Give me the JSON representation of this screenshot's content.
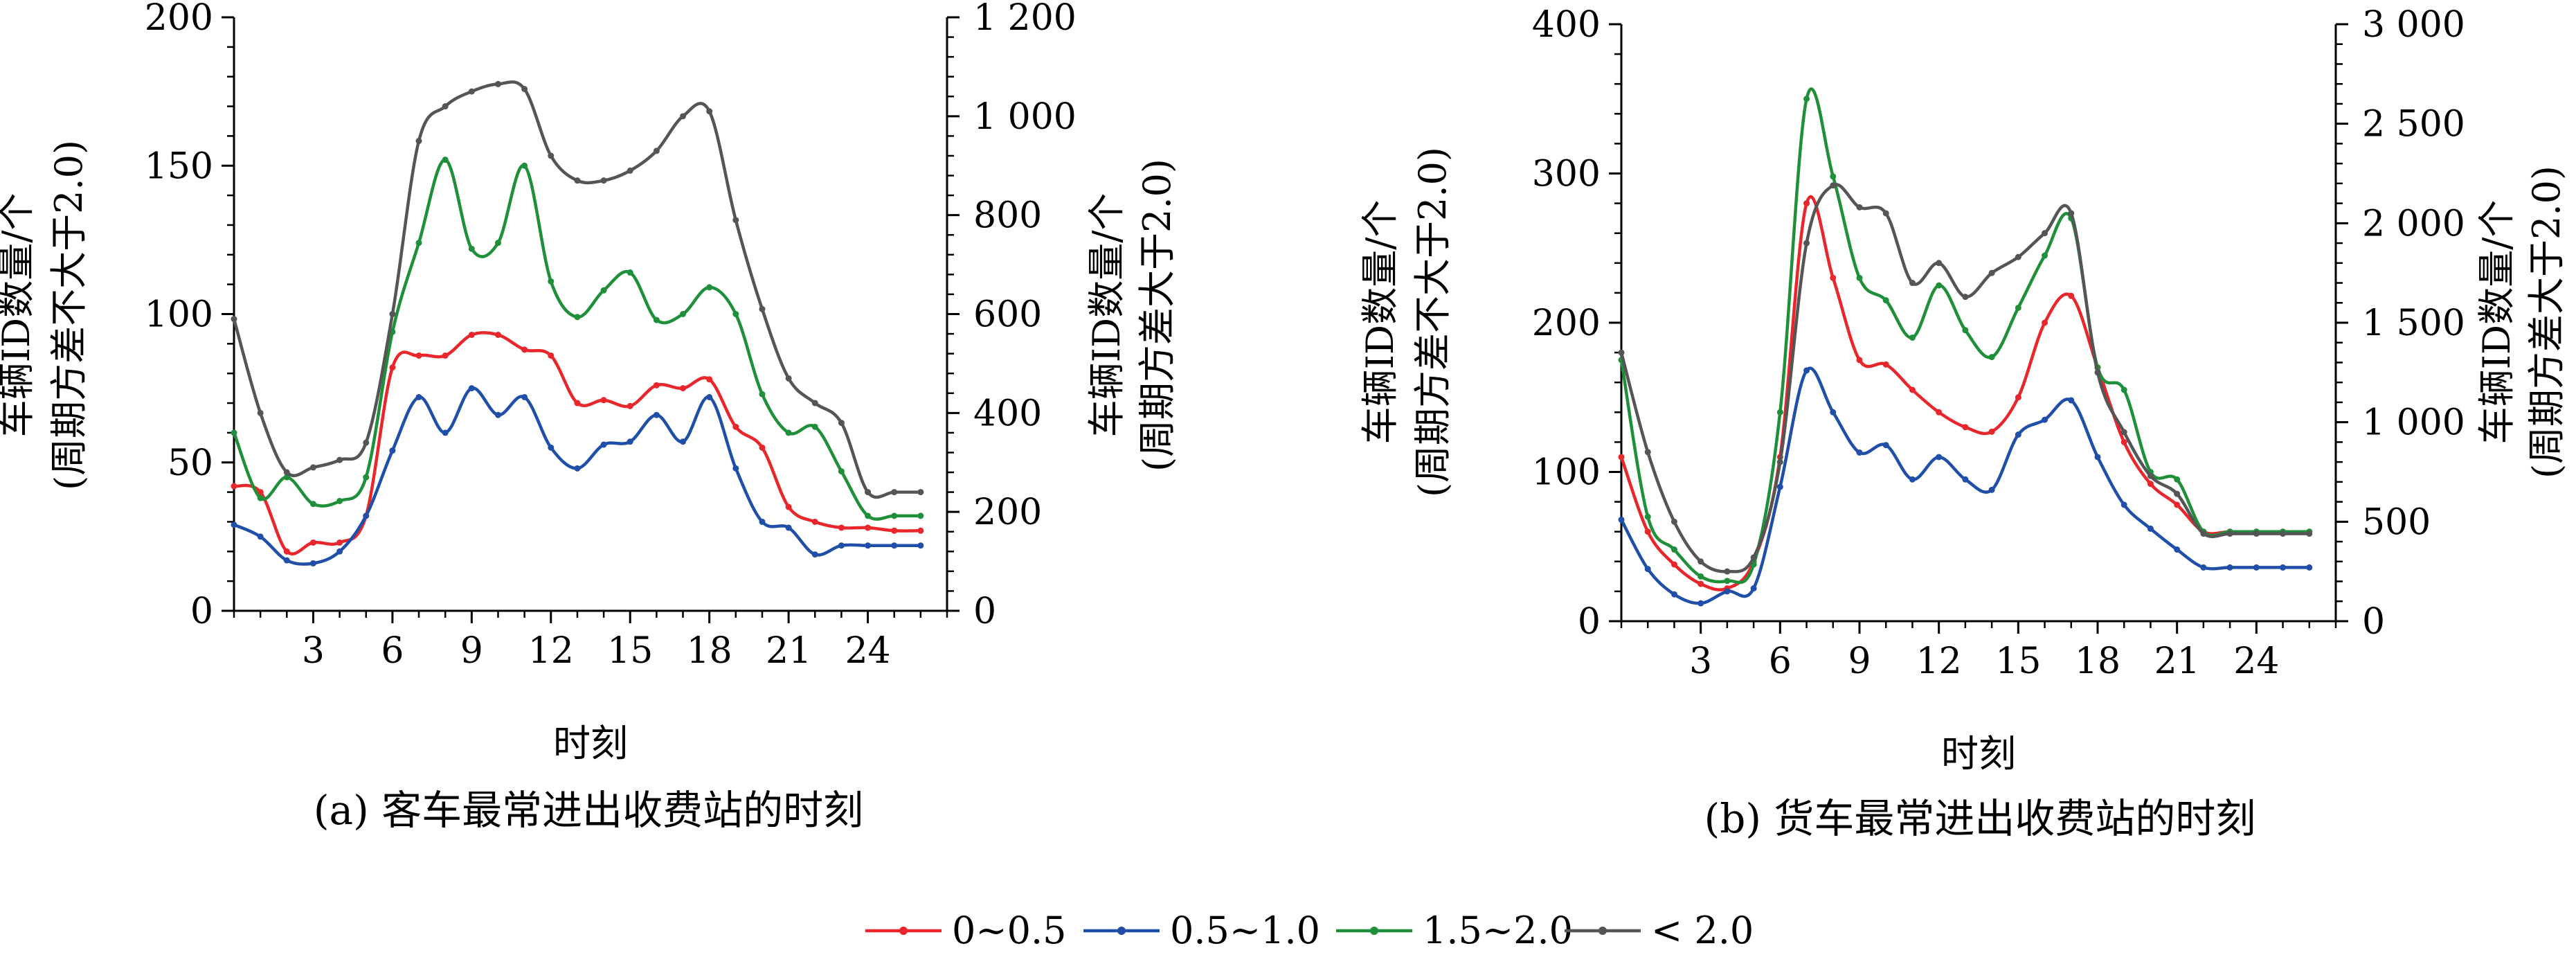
{
  "legend": [
    {
      "label": "0~0.5",
      "color": "#e8262b"
    },
    {
      "label": "0.5~1.0",
      "color": "#1f4fa8"
    },
    {
      "label": "1.5~2.0",
      "color": "#1f8f3a"
    },
    {
      "label": "< 2.0",
      "color": "#555555"
    }
  ],
  "chart_data": [
    {
      "type": "line",
      "caption": "(a) 客车最常进出收费站的时刻",
      "xlabel": "时刻",
      "ylabel_left_lines": [
        "车辆ID数量/个",
        "(周期方差不大于2.0)"
      ],
      "ylabel_right_lines": [
        "车辆ID数量/个",
        "(周期方差大于2.0)"
      ],
      "xlim": [
        0,
        27
      ],
      "xticks": [
        3,
        6,
        9,
        12,
        15,
        18,
        21,
        24
      ],
      "xtick_labels": [
        "3",
        "6",
        "9",
        "12",
        "15",
        "18",
        "21",
        "24"
      ],
      "ylim_left": [
        0,
        200
      ],
      "yticks_left": [
        0,
        50,
        100,
        150,
        200
      ],
      "ytick_labels_left": [
        "0",
        "50",
        "100",
        "150",
        "200"
      ],
      "ylim_right": [
        0,
        1200
      ],
      "yticks_right": [
        0,
        200,
        400,
        600,
        800,
        1000,
        1200
      ],
      "ytick_labels_right": [
        "0",
        "200",
        "400",
        "600",
        "800",
        "1 000",
        "1 200"
      ],
      "x": [
        0,
        1,
        2,
        3,
        4,
        5,
        6,
        7,
        8,
        9,
        10,
        11,
        12,
        13,
        14,
        15,
        16,
        17,
        18,
        19,
        20,
        21,
        22,
        23,
        24,
        25,
        26
      ],
      "series": [
        {
          "name": "0~0.5",
          "axis": "left",
          "color": "#e8262b",
          "values": [
            42,
            40,
            20,
            23,
            23,
            32,
            82,
            86,
            86,
            93,
            93,
            88,
            86,
            70,
            71,
            69,
            76,
            75,
            78,
            62,
            55,
            35,
            30,
            28,
            28,
            27,
            27
          ]
        },
        {
          "name": "0.5~1.0",
          "axis": "left",
          "color": "#1f4fa8",
          "values": [
            29,
            25,
            17,
            16,
            20,
            32,
            54,
            72,
            60,
            75,
            66,
            72,
            55,
            48,
            56,
            57,
            66,
            57,
            72,
            48,
            30,
            28,
            19,
            22,
            22,
            22,
            22
          ]
        },
        {
          "name": "1.5~2.0",
          "axis": "left",
          "color": "#1f8f3a",
          "values": [
            60,
            38,
            45,
            36,
            37,
            45,
            94,
            124,
            152,
            122,
            124,
            150,
            111,
            99,
            108,
            114,
            98,
            100,
            109,
            100,
            73,
            60,
            62,
            47,
            32,
            32,
            32
          ]
        },
        {
          "name": "< 2.0",
          "axis": "right",
          "color": "#555555",
          "values": [
            590,
            400,
            280,
            290,
            305,
            340,
            600,
            950,
            1020,
            1050,
            1065,
            1055,
            920,
            870,
            870,
            890,
            930,
            1000,
            1010,
            790,
            610,
            470,
            420,
            380,
            240,
            240,
            240
          ]
        }
      ]
    },
    {
      "type": "line",
      "caption": "(b) 货车最常进出收费站的时刻",
      "xlabel": "时刻",
      "ylabel_left_lines": [
        "车辆ID数量/个",
        "(周期方差不大于2.0)"
      ],
      "ylabel_right_lines": [
        "车辆ID数量/个",
        "(周期方差大于2.0)"
      ],
      "xlim": [
        0,
        27
      ],
      "xticks": [
        3,
        6,
        9,
        12,
        15,
        18,
        21,
        24
      ],
      "xtick_labels": [
        "3",
        "6",
        "9",
        "12",
        "15",
        "18",
        "21",
        "24"
      ],
      "ylim_left": [
        0,
        400
      ],
      "yticks_left": [
        0,
        100,
        200,
        300,
        400
      ],
      "ytick_labels_left": [
        "0",
        "100",
        "200",
        "300",
        "400"
      ],
      "ylim_right": [
        0,
        3000
      ],
      "yticks_right": [
        0,
        500,
        1000,
        1500,
        2000,
        2500,
        3000
      ],
      "ytick_labels_right": [
        "0",
        "500",
        "1 000",
        "1 500",
        "2 000",
        "2 500",
        "3 000"
      ],
      "x": [
        0,
        1,
        2,
        3,
        4,
        5,
        6,
        7,
        8,
        9,
        10,
        11,
        12,
        13,
        14,
        15,
        16,
        17,
        18,
        19,
        20,
        21,
        22,
        23,
        24,
        25,
        26
      ],
      "series": [
        {
          "name": "0~0.5",
          "axis": "left",
          "color": "#e8262b",
          "values": [
            110,
            60,
            38,
            25,
            22,
            40,
            110,
            280,
            230,
            175,
            172,
            155,
            140,
            130,
            127,
            150,
            200,
            218,
            170,
            120,
            92,
            78,
            60,
            60,
            60,
            60,
            60
          ]
        },
        {
          "name": "0.5~1.0",
          "axis": "left",
          "color": "#1f4fa8",
          "values": [
            68,
            35,
            18,
            12,
            20,
            22,
            90,
            168,
            140,
            113,
            118,
            95,
            110,
            95,
            88,
            125,
            135,
            148,
            110,
            78,
            62,
            48,
            36,
            36,
            36,
            36,
            36
          ]
        },
        {
          "name": "1.5~2.0",
          "axis": "left",
          "color": "#1f8f3a",
          "values": [
            175,
            70,
            48,
            30,
            27,
            38,
            140,
            350,
            298,
            230,
            215,
            190,
            225,
            195,
            177,
            210,
            245,
            270,
            170,
            155,
            100,
            95,
            60,
            60,
            60,
            60,
            60
          ]
        },
        {
          "name": "< 2.0",
          "axis": "right",
          "color": "#555555",
          "values": [
            1350,
            850,
            500,
            300,
            250,
            320,
            800,
            1900,
            2190,
            2080,
            2050,
            1700,
            1800,
            1630,
            1750,
            1830,
            1950,
            2050,
            1250,
            950,
            730,
            640,
            440,
            440,
            440,
            440,
            440
          ]
        }
      ]
    }
  ]
}
